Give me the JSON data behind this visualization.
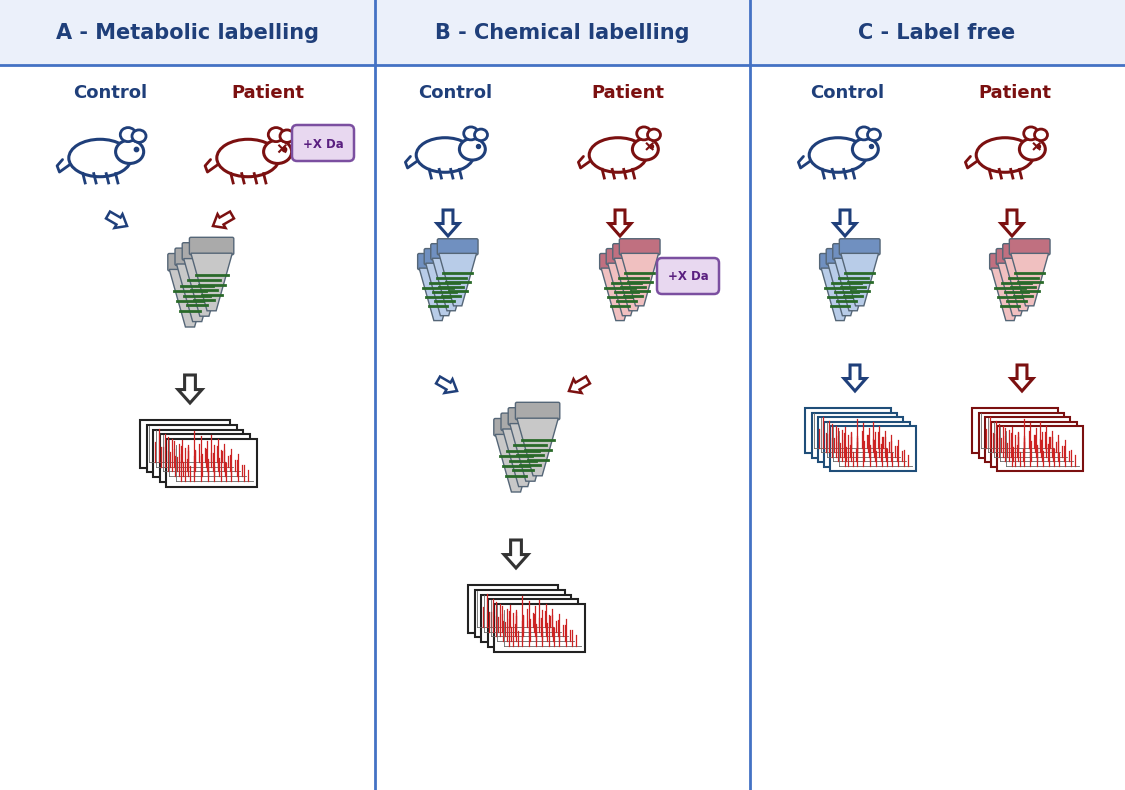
{
  "title_A": "A - Metabolic labelling",
  "title_B": "B - Chemical labelling",
  "title_C": "C - Label free",
  "control_color": "#1F3F7A",
  "patient_color": "#7B1010",
  "title_color": "#1F3F7A",
  "divider_color": "#4472C4",
  "header_bg": "#EBF0FA",
  "xda_bg": "#E8D8F0",
  "xda_border": "#7B4FA0",
  "xda_text": "#5A2080",
  "tube_blue": "#B8CCE8",
  "tube_pink": "#F0C0C0",
  "tube_gray": "#C8C8C8",
  "tube_cap_gray": "#AAAAAA",
  "tube_cap_blue": "#7090C0",
  "tube_cap_pink": "#C07080",
  "fig_border_blue": "#1F4E79",
  "fig_border_darkred": "#7B1010",
  "fig_border_black": "#222222"
}
